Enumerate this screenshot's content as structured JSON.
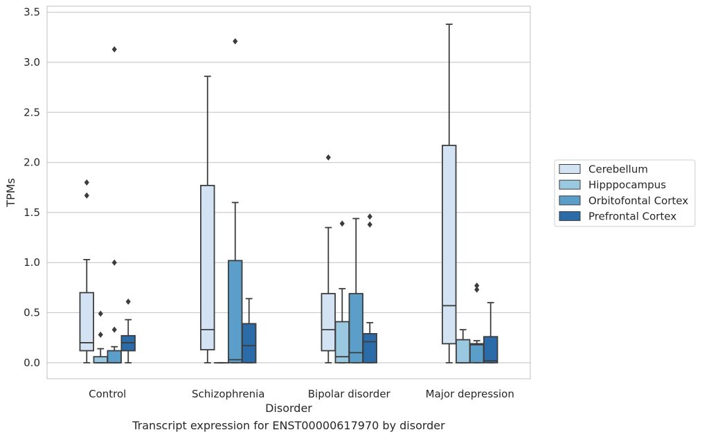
{
  "chart_data": {
    "type": "box",
    "caption": "Transcript expression for ENST00000617970 by disorder",
    "xlabel": "Disorder",
    "ylabel": "TPMs",
    "ylim": [
      -0.16,
      3.56
    ],
    "yticks": [
      "0.0",
      "0.5",
      "1.0",
      "1.5",
      "2.0",
      "2.5",
      "3.0",
      "3.5"
    ],
    "categories": [
      "Control",
      "Schizophrenia",
      "Bipolar disorder",
      "Major depression"
    ],
    "grid": "horizontal",
    "legend_position": "right",
    "series": [
      {
        "name": "Cerebellum",
        "color": "#d3e3f3",
        "boxes": [
          {
            "min": 0.0,
            "q1": 0.12,
            "median": 0.2,
            "q3": 0.7,
            "max": 1.03,
            "outliers": [
              1.67,
              1.8
            ]
          },
          {
            "min": 0.0,
            "q1": 0.13,
            "median": 0.33,
            "q3": 1.77,
            "max": 2.86,
            "outliers": []
          },
          {
            "min": 0.0,
            "q1": 0.12,
            "median": 0.33,
            "q3": 0.69,
            "max": 1.35,
            "outliers": [
              2.05
            ]
          },
          {
            "min": 0.0,
            "q1": 0.19,
            "median": 0.57,
            "q3": 2.17,
            "max": 3.38,
            "outliers": []
          }
        ]
      },
      {
        "name": "Hipppocampus",
        "color": "#9ac8e0",
        "boxes": [
          {
            "min": 0.0,
            "q1": 0.0,
            "median": 0.0,
            "q3": 0.06,
            "max": 0.14,
            "outliers": [
              0.28,
              0.49
            ]
          },
          {
            "min": 0.0,
            "q1": 0.0,
            "median": 0.0,
            "q3": 0.0,
            "max": 0.0,
            "outliers": []
          },
          {
            "min": 0.0,
            "q1": 0.0,
            "median": 0.06,
            "q3": 0.41,
            "max": 0.74,
            "outliers": [
              1.39
            ]
          },
          {
            "min": 0.0,
            "q1": 0.0,
            "median": 0.0,
            "q3": 0.23,
            "max": 0.33,
            "outliers": []
          }
        ]
      },
      {
        "name": "Orbitofontal Cortex",
        "color": "#5a9ec9",
        "boxes": [
          {
            "min": 0.0,
            "q1": 0.0,
            "median": 0.0,
            "q3": 0.12,
            "max": 0.16,
            "outliers": [
              0.33,
              1.0,
              3.13
            ]
          },
          {
            "min": 0.0,
            "q1": 0.0,
            "median": 0.03,
            "q3": 1.02,
            "max": 1.6,
            "outliers": [
              3.21
            ]
          },
          {
            "min": 0.0,
            "q1": 0.0,
            "median": 0.1,
            "q3": 0.69,
            "max": 1.44,
            "outliers": []
          },
          {
            "min": 0.0,
            "q1": 0.0,
            "median": 0.18,
            "q3": 0.19,
            "max": 0.22,
            "outliers": [
              0.73,
              0.77
            ]
          }
        ]
      },
      {
        "name": "Prefrontal Cortex",
        "color": "#2b6ba8",
        "boxes": [
          {
            "min": 0.0,
            "q1": 0.12,
            "median": 0.2,
            "q3": 0.27,
            "max": 0.43,
            "outliers": [
              0.61
            ]
          },
          {
            "min": 0.0,
            "q1": 0.0,
            "median": 0.17,
            "q3": 0.39,
            "max": 0.64,
            "outliers": []
          },
          {
            "min": 0.0,
            "q1": 0.0,
            "median": 0.21,
            "q3": 0.29,
            "max": 0.4,
            "outliers": [
              1.38,
              1.46
            ]
          },
          {
            "min": 0.0,
            "q1": 0.0,
            "median": 0.02,
            "q3": 0.26,
            "max": 0.6,
            "outliers": []
          }
        ]
      }
    ]
  }
}
